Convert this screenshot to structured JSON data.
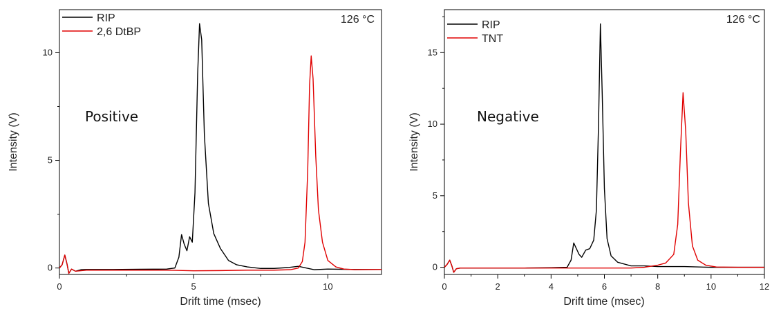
{
  "chart_data": [
    {
      "type": "line",
      "annotation": "Positive",
      "temperature": "126 °C",
      "xlabel": "Drift time (msec)",
      "ylabel": "Intensity (V)",
      "xlim": [
        0,
        12
      ],
      "ylim": [
        -0.3,
        12.0
      ],
      "xticks": [
        0,
        5,
        10
      ],
      "yticks": [
        0,
        5,
        10
      ],
      "legend_position": "top-left",
      "series": [
        {
          "name": "RIP",
          "color": "#000000",
          "points": [
            [
              0.0,
              0.0
            ],
            [
              0.1,
              0.15
            ],
            [
              0.2,
              0.6
            ],
            [
              0.28,
              0.2
            ],
            [
              0.35,
              -0.25
            ],
            [
              0.45,
              -0.05
            ],
            [
              0.6,
              -0.15
            ],
            [
              0.8,
              -0.08
            ],
            [
              1.0,
              -0.07
            ],
            [
              2.0,
              -0.07
            ],
            [
              3.0,
              -0.06
            ],
            [
              4.0,
              -0.05
            ],
            [
              4.3,
              0.0
            ],
            [
              4.45,
              0.5
            ],
            [
              4.55,
              1.55
            ],
            [
              4.65,
              1.1
            ],
            [
              4.75,
              0.8
            ],
            [
              4.85,
              1.45
            ],
            [
              4.95,
              1.2
            ],
            [
              5.05,
              3.5
            ],
            [
              5.15,
              9.0
            ],
            [
              5.22,
              11.35
            ],
            [
              5.3,
              10.6
            ],
            [
              5.4,
              6.2
            ],
            [
              5.55,
              3.0
            ],
            [
              5.75,
              1.6
            ],
            [
              6.0,
              0.9
            ],
            [
              6.3,
              0.35
            ],
            [
              6.6,
              0.15
            ],
            [
              7.0,
              0.05
            ],
            [
              7.5,
              -0.02
            ],
            [
              8.0,
              -0.02
            ],
            [
              8.5,
              0.02
            ],
            [
              8.9,
              0.08
            ],
            [
              9.2,
              0.0
            ],
            [
              9.5,
              -0.08
            ],
            [
              10.0,
              -0.05
            ],
            [
              11.0,
              -0.07
            ],
            [
              12.0,
              -0.07
            ]
          ]
        },
        {
          "name": "2,6 DtBP",
          "color": "#e00000",
          "points": [
            [
              0.0,
              0.0
            ],
            [
              0.1,
              0.15
            ],
            [
              0.2,
              0.6
            ],
            [
              0.28,
              0.2
            ],
            [
              0.35,
              -0.25
            ],
            [
              0.45,
              -0.05
            ],
            [
              0.6,
              -0.15
            ],
            [
              1.0,
              -0.1
            ],
            [
              2.0,
              -0.1
            ],
            [
              3.0,
              -0.1
            ],
            [
              4.0,
              -0.1
            ],
            [
              5.0,
              -0.13
            ],
            [
              6.0,
              -0.12
            ],
            [
              7.0,
              -0.1
            ],
            [
              8.0,
              -0.1
            ],
            [
              8.6,
              -0.08
            ],
            [
              8.9,
              0.0
            ],
            [
              9.05,
              0.3
            ],
            [
              9.15,
              1.2
            ],
            [
              9.25,
              4.5
            ],
            [
              9.32,
              8.5
            ],
            [
              9.38,
              9.85
            ],
            [
              9.45,
              8.8
            ],
            [
              9.55,
              5.2
            ],
            [
              9.65,
              2.7
            ],
            [
              9.8,
              1.2
            ],
            [
              10.0,
              0.35
            ],
            [
              10.3,
              0.05
            ],
            [
              10.6,
              -0.05
            ],
            [
              11.0,
              -0.08
            ],
            [
              12.0,
              -0.07
            ]
          ]
        }
      ]
    },
    {
      "type": "line",
      "annotation": "Negative",
      "temperature": "126 °C",
      "xlabel": "Drift time (msec)",
      "ylabel": "Intensity (V)",
      "xlim": [
        0,
        12
      ],
      "ylim": [
        -0.5,
        18.0
      ],
      "xticks": [
        0,
        2,
        4,
        6,
        8,
        10,
        12
      ],
      "yticks": [
        0,
        5,
        10,
        15
      ],
      "legend_position": "top-left",
      "series": [
        {
          "name": "RIP",
          "color": "#000000",
          "points": [
            [
              0.0,
              0.0
            ],
            [
              0.1,
              0.2
            ],
            [
              0.2,
              0.5
            ],
            [
              0.28,
              0.1
            ],
            [
              0.35,
              -0.35
            ],
            [
              0.45,
              -0.1
            ],
            [
              0.6,
              -0.05
            ],
            [
              1.0,
              -0.05
            ],
            [
              2.0,
              -0.05
            ],
            [
              3.0,
              -0.05
            ],
            [
              4.0,
              -0.03
            ],
            [
              4.6,
              0.0
            ],
            [
              4.75,
              0.5
            ],
            [
              4.85,
              1.7
            ],
            [
              4.95,
              1.3
            ],
            [
              5.05,
              0.9
            ],
            [
              5.15,
              0.7
            ],
            [
              5.3,
              1.2
            ],
            [
              5.45,
              1.3
            ],
            [
              5.6,
              1.9
            ],
            [
              5.7,
              4.0
            ],
            [
              5.78,
              10.0
            ],
            [
              5.85,
              17.0
            ],
            [
              5.92,
              12.0
            ],
            [
              6.0,
              5.5
            ],
            [
              6.1,
              2.0
            ],
            [
              6.25,
              0.8
            ],
            [
              6.5,
              0.35
            ],
            [
              7.0,
              0.1
            ],
            [
              7.5,
              0.1
            ],
            [
              8.0,
              0.05
            ],
            [
              9.0,
              0.05
            ],
            [
              10.0,
              0.0
            ],
            [
              11.0,
              0.0
            ],
            [
              12.0,
              0.0
            ]
          ]
        },
        {
          "name": "TNT",
          "color": "#e00000",
          "points": [
            [
              0.0,
              0.0
            ],
            [
              0.1,
              0.2
            ],
            [
              0.2,
              0.5
            ],
            [
              0.28,
              0.1
            ],
            [
              0.35,
              -0.35
            ],
            [
              0.45,
              -0.1
            ],
            [
              0.6,
              -0.05
            ],
            [
              1.0,
              -0.05
            ],
            [
              3.0,
              -0.05
            ],
            [
              5.0,
              -0.05
            ],
            [
              6.0,
              -0.05
            ],
            [
              7.0,
              -0.05
            ],
            [
              7.5,
              0.0
            ],
            [
              8.0,
              0.15
            ],
            [
              8.3,
              0.3
            ],
            [
              8.6,
              0.9
            ],
            [
              8.75,
              3.0
            ],
            [
              8.85,
              8.0
            ],
            [
              8.95,
              12.2
            ],
            [
              9.05,
              9.5
            ],
            [
              9.15,
              4.5
            ],
            [
              9.3,
              1.5
            ],
            [
              9.5,
              0.5
            ],
            [
              9.8,
              0.15
            ],
            [
              10.2,
              0.02
            ],
            [
              11.0,
              0.0
            ],
            [
              12.0,
              0.0
            ]
          ]
        }
      ]
    }
  ]
}
